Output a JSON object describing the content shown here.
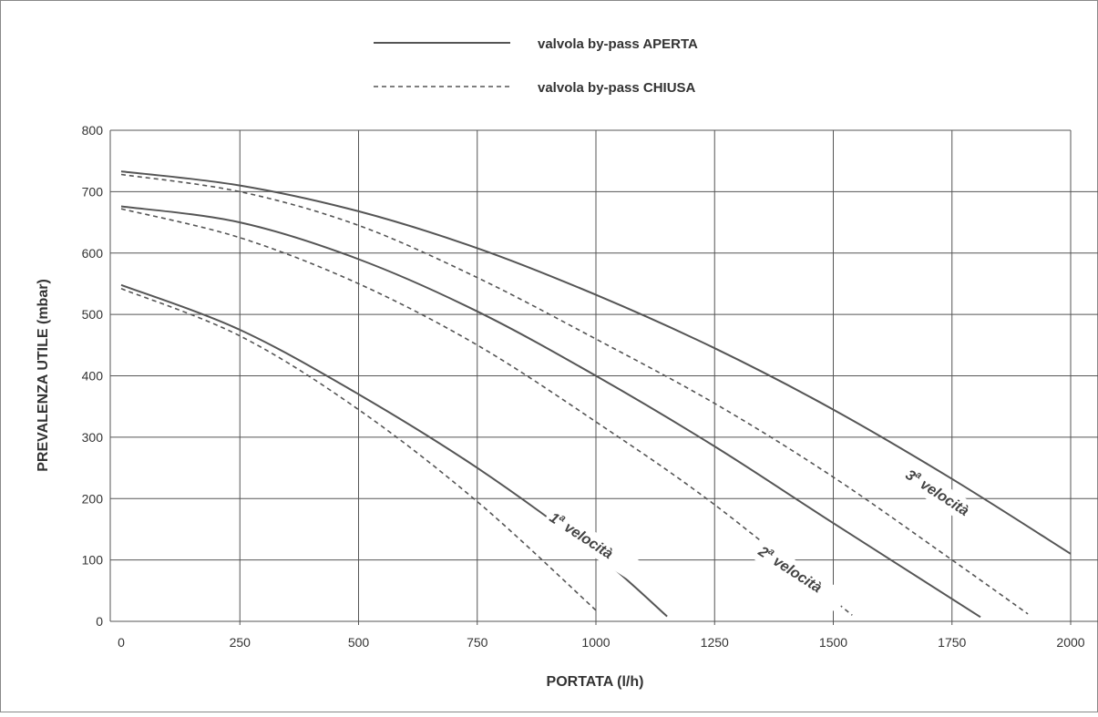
{
  "chart_data": {
    "type": "line",
    "xlabel": "PORTATA (l/h)",
    "ylabel": "PREVALENZA UTILE (mbar)",
    "xlim": [
      0,
      2000
    ],
    "ylim": [
      0,
      800
    ],
    "x_ticks": [
      "0",
      "250",
      "500",
      "750",
      "1000",
      "1250",
      "1500",
      "1750",
      "2000"
    ],
    "y_ticks": [
      "0",
      "100",
      "200",
      "300",
      "400",
      "500",
      "600",
      "700",
      "800"
    ],
    "grid": true,
    "legend_position": "top-center",
    "legend": [
      {
        "label": "valvola by-pass APERTA",
        "style": "solid"
      },
      {
        "label": "valvola by-pass CHIUSA",
        "style": "dashed"
      }
    ],
    "curve_labels": [
      {
        "base": "1",
        "sup": "a",
        "rest": " velocità",
        "x": 900,
        "y": 165
      },
      {
        "base": "2",
        "sup": "a",
        "rest": " velocità",
        "x": 1340,
        "y": 110
      },
      {
        "base": "3",
        "sup": "a",
        "rest": " velocità",
        "x": 1650,
        "y": 235
      }
    ],
    "series": [
      {
        "speed": "1ª velocità",
        "bypass": "APERTA",
        "style": "solid",
        "points": [
          [
            0,
            548
          ],
          [
            250,
            475
          ],
          [
            500,
            370
          ],
          [
            750,
            250
          ],
          [
            1000,
            110
          ],
          [
            1150,
            8
          ]
        ]
      },
      {
        "speed": "1ª velocità",
        "bypass": "CHIUSA",
        "style": "dashed",
        "points": [
          [
            0,
            542
          ],
          [
            250,
            465
          ],
          [
            500,
            345
          ],
          [
            750,
            195
          ],
          [
            1000,
            18
          ]
        ]
      },
      {
        "speed": "2ª velocità",
        "bypass": "APERTA",
        "style": "solid",
        "points": [
          [
            0,
            676
          ],
          [
            250,
            650
          ],
          [
            500,
            590
          ],
          [
            750,
            505
          ],
          [
            1000,
            400
          ],
          [
            1250,
            285
          ],
          [
            1500,
            160
          ],
          [
            1810,
            7
          ]
        ]
      },
      {
        "speed": "2ª velocità",
        "bypass": "CHIUSA",
        "style": "dashed",
        "points": [
          [
            0,
            672
          ],
          [
            250,
            625
          ],
          [
            500,
            550
          ],
          [
            750,
            450
          ],
          [
            1000,
            325
          ],
          [
            1250,
            190
          ],
          [
            1540,
            10
          ]
        ]
      },
      {
        "speed": "3ª velocità",
        "bypass": "APERTA",
        "style": "solid",
        "points": [
          [
            0,
            733
          ],
          [
            250,
            710
          ],
          [
            500,
            668
          ],
          [
            750,
            608
          ],
          [
            1000,
            532
          ],
          [
            1250,
            445
          ],
          [
            1500,
            345
          ],
          [
            1750,
            232
          ],
          [
            2000,
            110
          ]
        ]
      },
      {
        "speed": "3ª velocità",
        "bypass": "CHIUSA",
        "style": "dashed",
        "points": [
          [
            0,
            728
          ],
          [
            250,
            700
          ],
          [
            500,
            645
          ],
          [
            750,
            560
          ],
          [
            1000,
            460
          ],
          [
            1250,
            355
          ],
          [
            1500,
            235
          ],
          [
            1750,
            100
          ],
          [
            1910,
            12
          ]
        ]
      }
    ]
  }
}
